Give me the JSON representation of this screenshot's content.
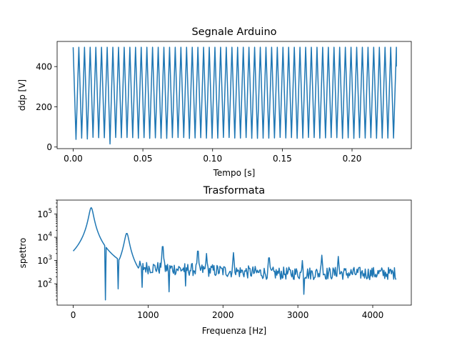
{
  "chart_data": [
    {
      "type": "line",
      "title": "Segnale Arduino",
      "xlabel": "Tempo [s]",
      "ylabel": "ddp [V]",
      "xlim": [
        -0.0115,
        0.2425
      ],
      "ylim": [
        -8,
        525
      ],
      "x_ticks": [
        {
          "value": 0.0,
          "label": "0.00"
        },
        {
          "value": 0.05,
          "label": "0.05"
        },
        {
          "value": 0.1,
          "label": "0.10"
        },
        {
          "value": 0.15,
          "label": "0.15"
        },
        {
          "value": 0.2,
          "label": "0.20"
        }
      ],
      "y_ticks": [
        {
          "value": 0,
          "label": "0"
        },
        {
          "value": 200,
          "label": "200"
        },
        {
          "value": 400,
          "label": "400"
        }
      ],
      "grid": false,
      "series": [
        {
          "color": "#1f77b4",
          "signal": {
            "shape": "triangle",
            "t_start": 0.0,
            "t_end": 0.2318,
            "cycles": 57,
            "peak": 496,
            "trough": 45,
            "trough_dips": [
              {
                "t": 0.0035,
                "value": 38
              },
              {
                "t": 0.0265,
                "value": 15
              },
              {
                "t": 0.0115,
                "value": 40
              }
            ],
            "end_value": 400
          }
        }
      ]
    },
    {
      "type": "line",
      "title": "Trasformata",
      "xlabel": "Frequenza [Hz]",
      "ylabel": "spettro",
      "xscale": "linear",
      "yscale": "log",
      "xlim": [
        -215,
        4515
      ],
      "ylim": [
        12,
        400000
      ],
      "x_ticks": [
        {
          "value": 0,
          "label": "0"
        },
        {
          "value": 1000,
          "label": "1000"
        },
        {
          "value": 2000,
          "label": "2000"
        },
        {
          "value": 3000,
          "label": "3000"
        },
        {
          "value": 4000,
          "label": "4000"
        }
      ],
      "y_ticks": [
        {
          "value": 100,
          "base": "10",
          "exp": "2"
        },
        {
          "value": 1000,
          "base": "10",
          "exp": "3"
        },
        {
          "value": 10000,
          "base": "10",
          "exp": "4"
        },
        {
          "value": 100000,
          "base": "10",
          "exp": "5"
        }
      ],
      "grid": false,
      "series": [
        {
          "color": "#1f77b4",
          "spectrum": {
            "f_start": 0,
            "f_end": 4310,
            "floor_start": 700,
            "floor_end": 280,
            "peaks": [
              {
                "f": 240,
                "value": 190000
              },
              {
                "f": 715,
                "value": 15000
              },
              {
                "f": 1195,
                "value": 5500
              },
              {
                "f": 1665,
                "value": 3500
              },
              {
                "f": 1780,
                "value": 2000
              },
              {
                "f": 2140,
                "value": 2200
              },
              {
                "f": 2615,
                "value": 1800
              },
              {
                "f": 3320,
                "value": 1700
              },
              {
                "f": 3540,
                "value": 1500
              },
              {
                "f": 3060,
                "value": 1000
              }
            ],
            "dips": [
              {
                "f": 430,
                "value": 20
              },
              {
                "f": 1280,
                "value": 45
              },
              {
                "f": 3080,
                "value": 35
              },
              {
                "f": 600,
                "value": 60
              },
              {
                "f": 920,
                "value": 70
              },
              {
                "f": 1500,
                "value": 80
              }
            ]
          }
        }
      ]
    }
  ]
}
